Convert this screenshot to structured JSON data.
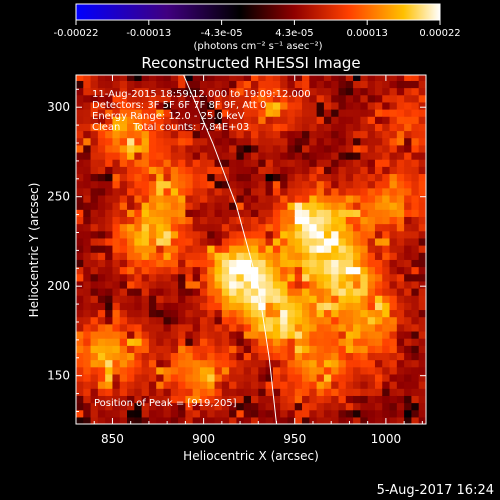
{
  "chart_data": {
    "type": "heatmap",
    "title": "Reconstructed RHESSI Image",
    "xlabel": "Heliocentric X (arcsec)",
    "ylabel": "Heliocentric Y (arcsec)",
    "xlim": [
      830,
      1022
    ],
    "ylim": [
      123,
      318
    ],
    "x_ticks": [
      850,
      900,
      950,
      1000
    ],
    "y_ticks": [
      150,
      200,
      250,
      300
    ],
    "colorbar": {
      "ticks": [
        "-0.00022",
        "-0.00013",
        "-4.3e-05",
        "4.3e-05",
        "0.00013",
        "0.00022"
      ],
      "range": [
        -0.00022,
        0.00022
      ],
      "units_label": "(photons cm⁻² s⁻¹ asec⁻²)",
      "colormap": [
        "#0000ff",
        "#400080",
        "#000000",
        "#900000",
        "#ff4000",
        "#ffc000",
        "#ffffff"
      ]
    },
    "annotations": [
      "11-Aug-2015 18:59:12.000 to 19:09:12.000",
      "Detectors: 3F 5F 6F 7F 8F 9F, Att 0",
      "Energy Range: 12.0 - 25.0 keV",
      "Clean    Total counts: 7.84E+03"
    ],
    "peak_label": "Position of Peak = [919,205]",
    "peak": [
      919,
      205
    ],
    "limb_curve": [
      [
        889,
        318
      ],
      [
        905,
        280
      ],
      [
        918,
        245
      ],
      [
        930,
        200
      ],
      [
        936,
        160
      ],
      [
        940,
        123
      ]
    ],
    "sources": [
      {
        "x": 919,
        "y": 205,
        "intensity": 0.00022
      },
      {
        "x": 958,
        "y": 232,
        "intensity": 0.00019
      },
      {
        "x": 975,
        "y": 205,
        "intensity": 0.00017
      },
      {
        "x": 940,
        "y": 180,
        "intensity": 0.00016
      },
      {
        "x": 868,
        "y": 225,
        "intensity": 0.00014
      },
      {
        "x": 845,
        "y": 160,
        "intensity": 0.00014
      },
      {
        "x": 855,
        "y": 285,
        "intensity": 0.00012
      },
      {
        "x": 1000,
        "y": 245,
        "intensity": 0.00012
      },
      {
        "x": 990,
        "y": 175,
        "intensity": 0.00011
      },
      {
        "x": 895,
        "y": 150,
        "intensity": 0.00011
      },
      {
        "x": 935,
        "y": 300,
        "intensity": 9e-05
      },
      {
        "x": 1010,
        "y": 290,
        "intensity": 8e-05
      },
      {
        "x": 960,
        "y": 150,
        "intensity": 0.0001
      },
      {
        "x": 880,
        "y": 255,
        "intensity": 0.0001
      }
    ]
  },
  "footer": {
    "timestamp": "5-Aug-2017 16:24"
  }
}
